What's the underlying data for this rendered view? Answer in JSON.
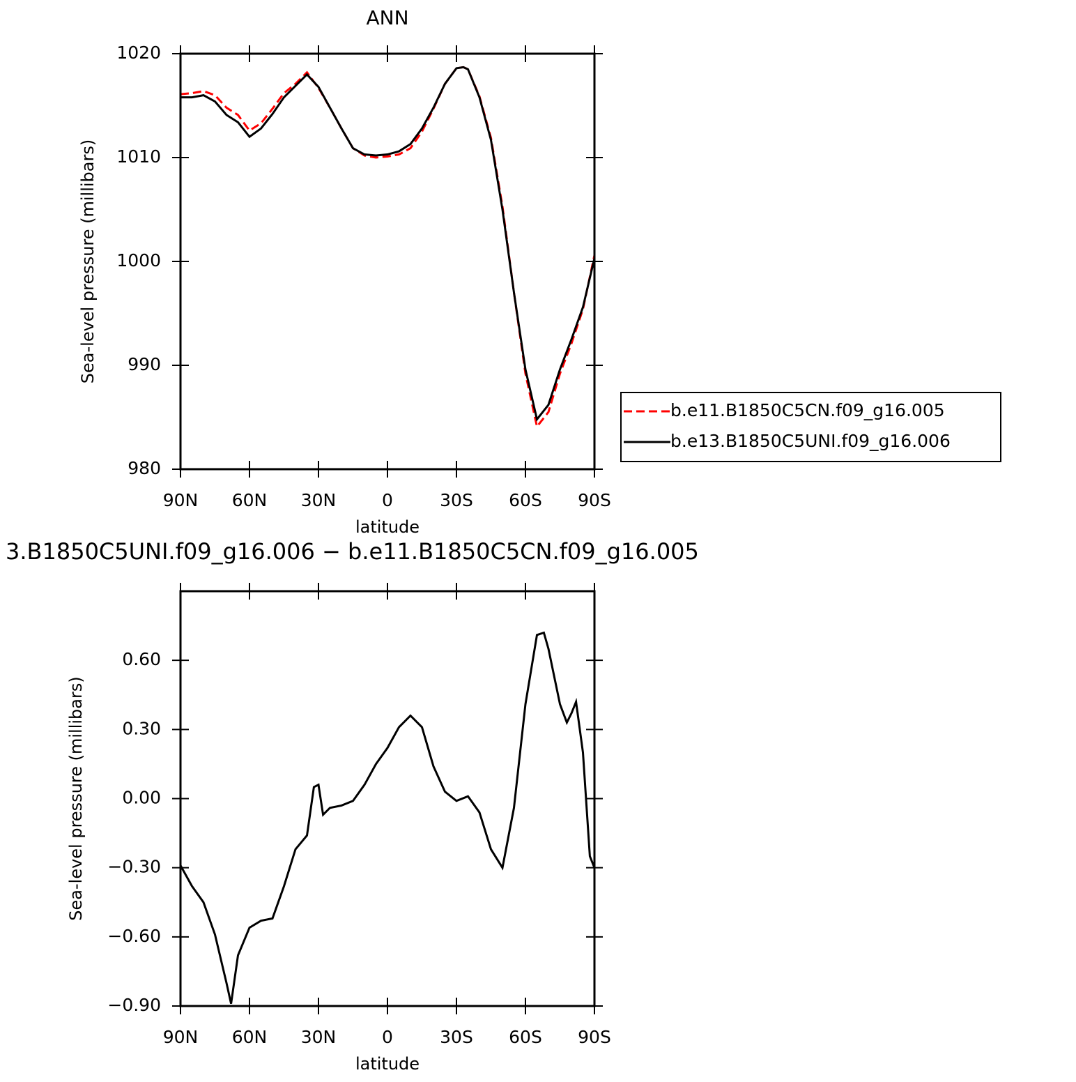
{
  "chart_data": [
    {
      "type": "line",
      "title": "ANN",
      "xlabel": "latitude",
      "ylabel": "Sea-level pressure (millibars)",
      "xlim": [
        90,
        -90
      ],
      "ylim": [
        980,
        1020
      ],
      "xticks": [
        {
          "value": 90,
          "label": "90N"
        },
        {
          "value": 60,
          "label": "60N"
        },
        {
          "value": 30,
          "label": "30N"
        },
        0,
        {
          "value": -30,
          "label": "30S"
        },
        {
          "value": -60,
          "label": "60S"
        },
        {
          "value": -90,
          "label": "90S"
        }
      ],
      "yticks": [
        980,
        990,
        1000,
        1010,
        1020
      ],
      "legend": "right",
      "x": [
        90,
        85,
        80,
        75,
        70,
        65,
        60,
        55,
        50,
        45,
        40,
        35,
        30,
        25,
        20,
        15,
        10,
        5,
        0,
        -5,
        -10,
        -15,
        -20,
        -25,
        -30,
        -33,
        -35,
        -40,
        -45,
        -50,
        -55,
        -60,
        -65,
        -70,
        -75,
        -80,
        -85,
        -90
      ],
      "series": [
        {
          "name": "b.e11.B1850C5CN.f09_g16.005",
          "color": "#ff0000",
          "style": "dashed",
          "values": [
            1016.1,
            1016.2,
            1016.4,
            1016.0,
            1014.8,
            1014.1,
            1012.6,
            1013.3,
            1014.7,
            1016.2,
            1017.1,
            1018.2,
            1016.7,
            1014.8,
            1012.8,
            1010.9,
            1010.2,
            1010.0,
            1010.1,
            1010.3,
            1010.9,
            1012.5,
            1014.7,
            1017.1,
            1018.6,
            1018.7,
            1018.5,
            1015.9,
            1011.9,
            1005.3,
            997.0,
            989.2,
            984.1,
            985.5,
            989.2,
            992.1,
            995.4,
            1000.6
          ]
        },
        {
          "name": "b.e13.B1850C5UNI.f09_g16.006",
          "color": "#000000",
          "style": "solid",
          "values": [
            1015.8,
            1015.8,
            1016.0,
            1015.4,
            1014.1,
            1013.4,
            1012.0,
            1012.8,
            1014.2,
            1015.8,
            1016.9,
            1018.0,
            1016.8,
            1014.8,
            1012.8,
            1010.9,
            1010.3,
            1010.2,
            1010.3,
            1010.6,
            1011.3,
            1012.8,
            1014.8,
            1017.1,
            1018.6,
            1018.7,
            1018.5,
            1015.8,
            1011.7,
            1005.0,
            997.0,
            989.6,
            984.8,
            986.2,
            989.6,
            992.5,
            995.6,
            1000.3
          ]
        }
      ]
    },
    {
      "type": "line",
      "title": "3.B1850C5UNI.f09_g16.006 − b.e11.B1850C5CN.f09_g16.005",
      "xlabel": "latitude",
      "ylabel": "Sea-level pressure (millibars)",
      "xlim": [
        90,
        -90
      ],
      "ylim": [
        -0.9,
        0.9
      ],
      "xticks": [
        {
          "value": 90,
          "label": "90N"
        },
        {
          "value": 60,
          "label": "60N"
        },
        {
          "value": 30,
          "label": "30N"
        },
        0,
        {
          "value": -30,
          "label": "30S"
        },
        {
          "value": -60,
          "label": "60S"
        },
        {
          "value": -90,
          "label": "90S"
        }
      ],
      "yticks": [
        {
          "value": -0.9,
          "label": "−0.90"
        },
        {
          "value": -0.6,
          "label": "−0.60"
        },
        {
          "value": -0.3,
          "label": "−0.30"
        },
        {
          "value": 0,
          "label": "0.00"
        },
        {
          "value": 0.3,
          "label": "0.30"
        },
        {
          "value": 0.6,
          "label": "0.60"
        }
      ],
      "x": [
        90,
        85,
        80,
        75,
        70,
        68,
        65,
        60,
        55,
        50,
        45,
        40,
        35,
        32,
        30,
        28,
        25,
        20,
        15,
        10,
        5,
        0,
        -5,
        -10,
        -15,
        -20,
        -25,
        -30,
        -35,
        -40,
        -45,
        -50,
        -55,
        -60,
        -65,
        -68,
        -70,
        -75,
        -78,
        -80,
        -82,
        -85,
        -88,
        -90
      ],
      "series": [
        {
          "color": "#000000",
          "style": "solid",
          "values": [
            -0.29,
            -0.38,
            -0.45,
            -0.59,
            -0.8,
            -0.89,
            -0.68,
            -0.56,
            -0.53,
            -0.52,
            -0.38,
            -0.22,
            -0.16,
            0.05,
            0.06,
            -0.07,
            -0.04,
            -0.03,
            -0.01,
            0.06,
            0.15,
            0.22,
            0.31,
            0.36,
            0.31,
            0.14,
            0.03,
            -0.01,
            0.01,
            -0.06,
            -0.22,
            -0.3,
            -0.04,
            0.41,
            0.71,
            0.72,
            0.65,
            0.41,
            0.33,
            0.37,
            0.42,
            0.2,
            -0.25,
            -0.3
          ]
        }
      ]
    }
  ]
}
